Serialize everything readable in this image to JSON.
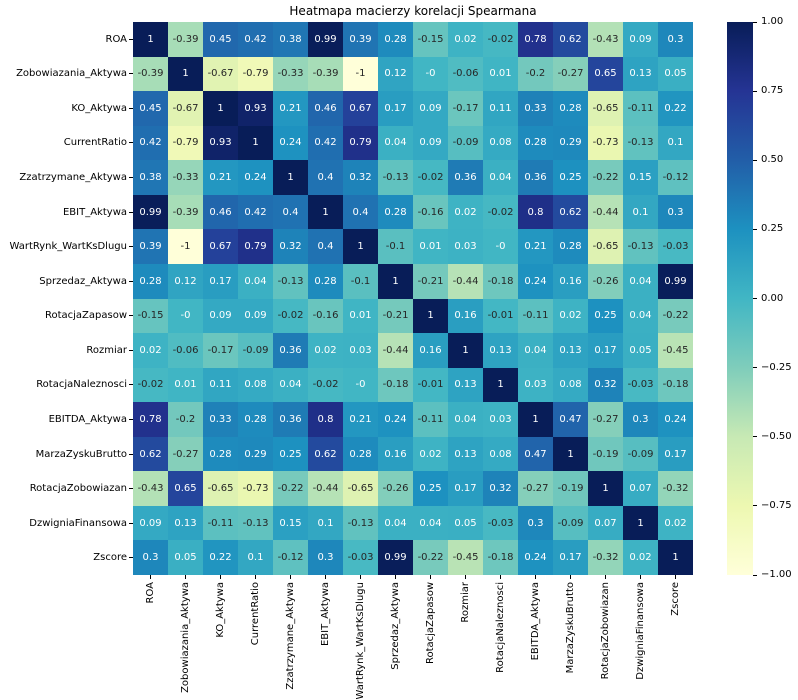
{
  "title": "Heatmapa macierzy korelacji Spearmana",
  "chart_data": {
    "type": "heatmap",
    "title": "Heatmapa macierzy korelacji Spearmana",
    "xlabel": "",
    "ylabel": "",
    "categories": [
      "ROA",
      "Zobowiazania_Aktywa",
      "KO_Aktywa",
      "CurrentRatio",
      "Zzatrzymane_Aktywa",
      "EBIT_Aktywa",
      "WartRynk_WartKsDlugu",
      "Sprzedaz_Aktywa",
      "RotacjaZapasow",
      "Rozmiar",
      "RotacjaNaleznosci",
      "EBITDA_Aktywa",
      "MarzaZyskuBrutto",
      "RotacjaZobowiazan",
      "DzwigniaFinansowa",
      "Zscore"
    ],
    "matrix": [
      [
        "1",
        "-0.39",
        "0.45",
        "0.42",
        "0.38",
        "0.99",
        "0.39",
        "0.28",
        "-0.15",
        "0.02",
        "-0.02",
        "0.78",
        "0.62",
        "-0.43",
        "0.09",
        "0.3"
      ],
      [
        "-0.39",
        "1",
        "-0.67",
        "-0.79",
        "-0.33",
        "-0.39",
        "-1",
        "0.12",
        "-0",
        "-0.06",
        "0.01",
        "-0.2",
        "-0.27",
        "0.65",
        "0.13",
        "0.05"
      ],
      [
        "0.45",
        "-0.67",
        "1",
        "0.93",
        "0.21",
        "0.46",
        "0.67",
        "0.17",
        "0.09",
        "-0.17",
        "0.11",
        "0.33",
        "0.28",
        "-0.65",
        "-0.11",
        "0.22"
      ],
      [
        "0.42",
        "-0.79",
        "0.93",
        "1",
        "0.24",
        "0.42",
        "0.79",
        "0.04",
        "0.09",
        "-0.09",
        "0.08",
        "0.28",
        "0.29",
        "-0.73",
        "-0.13",
        "0.1"
      ],
      [
        "0.38",
        "-0.33",
        "0.21",
        "0.24",
        "1",
        "0.4",
        "0.32",
        "-0.13",
        "-0.02",
        "0.36",
        "0.04",
        "0.36",
        "0.25",
        "-0.22",
        "0.15",
        "-0.12"
      ],
      [
        "0.99",
        "-0.39",
        "0.46",
        "0.42",
        "0.4",
        "1",
        "0.4",
        "0.28",
        "-0.16",
        "0.02",
        "-0.02",
        "0.8",
        "0.62",
        "-0.44",
        "0.1",
        "0.3"
      ],
      [
        "0.39",
        "-1",
        "0.67",
        "0.79",
        "0.32",
        "0.4",
        "1",
        "-0.1",
        "0.01",
        "0.03",
        "-0",
        "0.21",
        "0.28",
        "-0.65",
        "-0.13",
        "-0.03"
      ],
      [
        "0.28",
        "0.12",
        "0.17",
        "0.04",
        "-0.13",
        "0.28",
        "-0.1",
        "1",
        "-0.21",
        "-0.44",
        "-0.18",
        "0.24",
        "0.16",
        "-0.26",
        "0.04",
        "0.99"
      ],
      [
        "-0.15",
        "-0",
        "0.09",
        "0.09",
        "-0.02",
        "-0.16",
        "0.01",
        "-0.21",
        "1",
        "0.16",
        "-0.01",
        "-0.11",
        "0.02",
        "0.25",
        "0.04",
        "-0.22"
      ],
      [
        "0.02",
        "-0.06",
        "-0.17",
        "-0.09",
        "0.36",
        "0.02",
        "0.03",
        "-0.44",
        "0.16",
        "1",
        "0.13",
        "0.04",
        "0.13",
        "0.17",
        "0.05",
        "-0.45"
      ],
      [
        "-0.02",
        "0.01",
        "0.11",
        "0.08",
        "0.04",
        "-0.02",
        "-0",
        "-0.18",
        "-0.01",
        "0.13",
        "1",
        "0.03",
        "0.08",
        "0.32",
        "-0.03",
        "-0.18"
      ],
      [
        "0.78",
        "-0.2",
        "0.33",
        "0.28",
        "0.36",
        "0.8",
        "0.21",
        "0.24",
        "-0.11",
        "0.04",
        "0.03",
        "1",
        "0.47",
        "-0.27",
        "0.3",
        "0.24"
      ],
      [
        "0.62",
        "-0.27",
        "0.28",
        "0.29",
        "0.25",
        "0.62",
        "0.28",
        "0.16",
        "0.02",
        "0.13",
        "0.08",
        "0.47",
        "1",
        "-0.19",
        "-0.09",
        "0.17"
      ],
      [
        "-0.43",
        "0.65",
        "-0.65",
        "-0.73",
        "-0.22",
        "-0.44",
        "-0.65",
        "-0.26",
        "0.25",
        "0.17",
        "0.32",
        "-0.27",
        "-0.19",
        "1",
        "0.07",
        "-0.32"
      ],
      [
        "0.09",
        "0.13",
        "-0.11",
        "-0.13",
        "0.15",
        "0.1",
        "-0.13",
        "0.04",
        "0.04",
        "0.05",
        "-0.03",
        "0.3",
        "-0.09",
        "0.07",
        "1",
        "0.02"
      ],
      [
        "0.3",
        "0.05",
        "0.22",
        "0.1",
        "-0.12",
        "0.3",
        "-0.03",
        "0.99",
        "-0.22",
        "-0.45",
        "-0.18",
        "0.24",
        "0.17",
        "-0.32",
        "0.02",
        "1"
      ]
    ],
    "vmin": -1,
    "vmax": 1,
    "colormap": {
      "name": "YlGnBu",
      "stops": [
        {
          "pos": 0.0,
          "color": "#ffffd9"
        },
        {
          "pos": 0.125,
          "color": "#edf8b1"
        },
        {
          "pos": 0.25,
          "color": "#c7e9b4"
        },
        {
          "pos": 0.375,
          "color": "#7fcdbb"
        },
        {
          "pos": 0.5,
          "color": "#41b6c4"
        },
        {
          "pos": 0.625,
          "color": "#1d91c0"
        },
        {
          "pos": 0.75,
          "color": "#225ea8"
        },
        {
          "pos": 0.875,
          "color": "#253494"
        },
        {
          "pos": 1.0,
          "color": "#081d58"
        }
      ]
    },
    "annotation_colors": {
      "light_text": "#ffffff",
      "dark_text": "#262626"
    },
    "colorbar_ticks": [
      "1.00",
      "0.75",
      "0.50",
      "0.25",
      "0.00",
      "−0.25",
      "−0.50",
      "−0.75",
      "−1.00"
    ],
    "legend_position": "right",
    "grid": false
  }
}
